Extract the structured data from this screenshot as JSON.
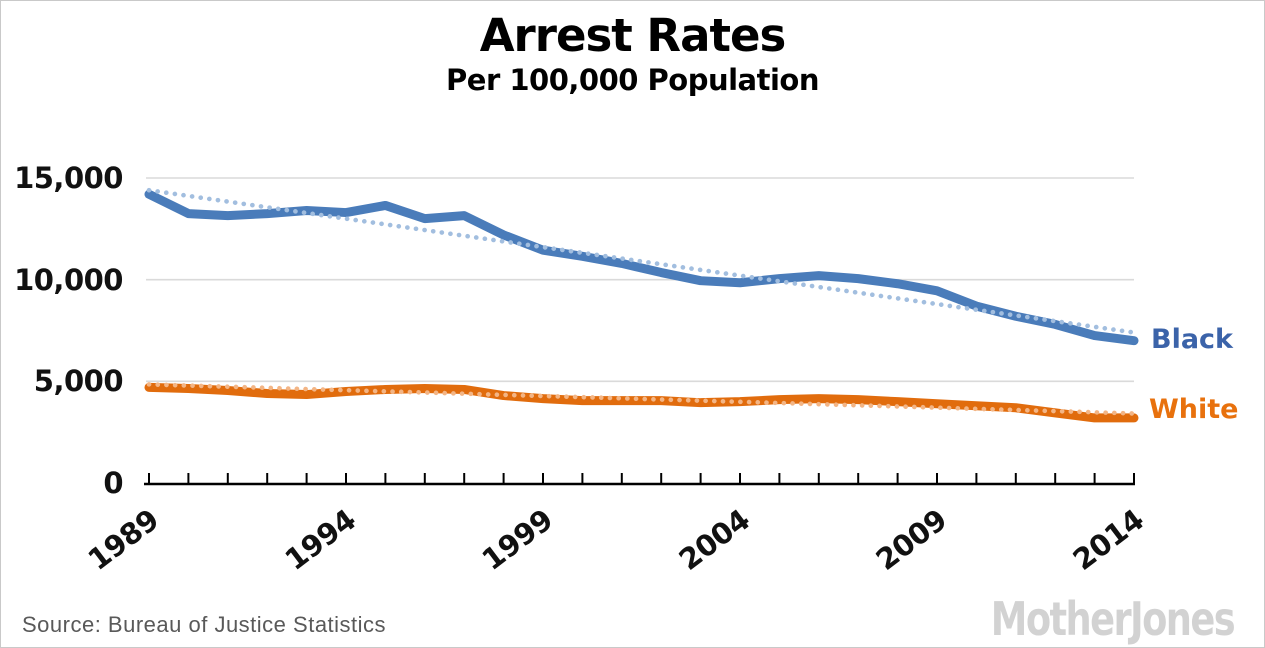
{
  "header": {
    "title": "Arrest Rates",
    "subtitle": "Per 100,000 Population"
  },
  "footer": {
    "source": "Source: Bureau of Justice Statistics",
    "logo": "MotherJones"
  },
  "colors": {
    "black_series": "#4a7cba",
    "black_trend": "#a2bedf",
    "white_series": "#e16c0d",
    "white_trend": "#f3b585",
    "black_label": "#3b63a9",
    "white_label": "#e8710d",
    "gridline": "#dadada",
    "axis": "#000000",
    "frame_border": "#c9c9c9",
    "source_text": "#595959",
    "logo_text": "#d2d2d2"
  },
  "chart_data": {
    "type": "line",
    "title": "Arrest Rates",
    "subtitle": "Per 100,000 Population",
    "xlabel": "",
    "ylabel": "",
    "x": [
      1989,
      1990,
      1991,
      1992,
      1993,
      1994,
      1995,
      1996,
      1997,
      1998,
      1999,
      2000,
      2001,
      2002,
      2003,
      2004,
      2005,
      2006,
      2007,
      2008,
      2009,
      2010,
      2011,
      2012,
      2013,
      2014
    ],
    "x_labeled_ticks": [
      "1989",
      "1994",
      "1999",
      "2004",
      "2009",
      "2014"
    ],
    "y_ticks": [
      {
        "value": 0,
        "label": "0"
      },
      {
        "value": 5000,
        "label": "5,000"
      },
      {
        "value": 10000,
        "label": "10,000"
      },
      {
        "value": 15000,
        "label": "15,000"
      }
    ],
    "ylim": [
      0,
      15000
    ],
    "grid": "horizontal",
    "legend_position": "right-of-line-ends",
    "series": [
      {
        "name": "Black",
        "color": "#4a7cba",
        "label_color": "#3b63a9",
        "values": [
          14200,
          13250,
          13150,
          13250,
          13400,
          13300,
          13650,
          13000,
          13150,
          12200,
          11450,
          11150,
          10800,
          10350,
          9950,
          9850,
          10050,
          10200,
          10050,
          9800,
          9450,
          8700,
          8200,
          7800,
          7250,
          7000
        ],
        "trendline": {
          "style": "dotted",
          "color": "#a2bedf",
          "start": 14400,
          "end": 7400
        }
      },
      {
        "name": "White",
        "color": "#e16c0d",
        "label_color": "#e8710d",
        "values": [
          4700,
          4650,
          4550,
          4400,
          4350,
          4500,
          4600,
          4650,
          4600,
          4300,
          4150,
          4050,
          4050,
          4050,
          3950,
          4000,
          4100,
          4150,
          4100,
          4000,
          3900,
          3800,
          3700,
          3450,
          3200,
          3200
        ],
        "trendline": {
          "style": "dotted",
          "color": "#f3b585",
          "start": 4850,
          "end": 3420
        }
      }
    ]
  }
}
